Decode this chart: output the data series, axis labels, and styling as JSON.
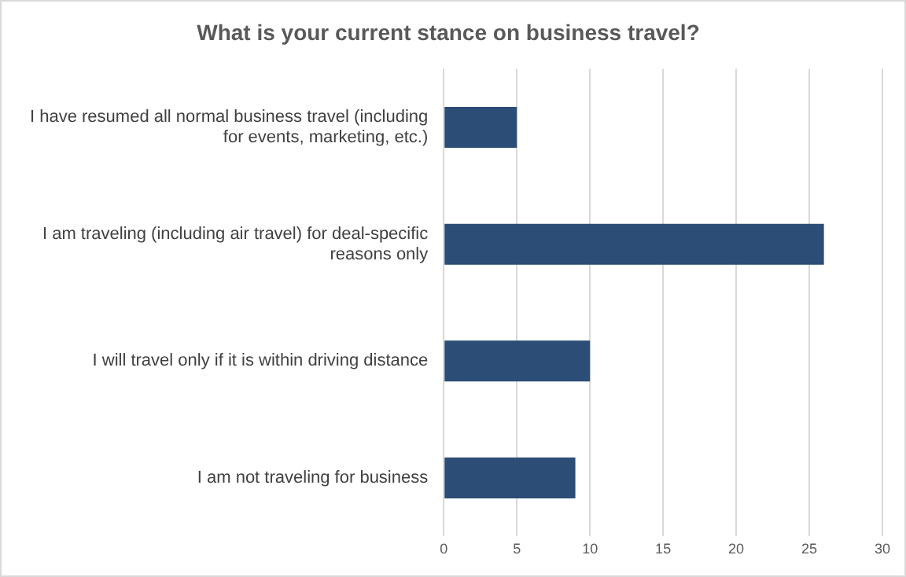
{
  "chart_data": {
    "type": "bar",
    "orientation": "horizontal",
    "title": "What is your current stance on business travel?",
    "categories": [
      "I have resumed all normal business travel (including for events, marketing, etc.)",
      "I am traveling (including air travel) for deal-specific reasons only",
      "I will travel only if it is within driving distance",
      "I am not traveling for business"
    ],
    "values": [
      5,
      26,
      10,
      9
    ],
    "color": "#2c4d75",
    "xlim": [
      0,
      30
    ],
    "xticks": [
      0,
      5,
      10,
      15,
      20,
      25,
      30
    ],
    "grid": "x",
    "legend": false
  }
}
